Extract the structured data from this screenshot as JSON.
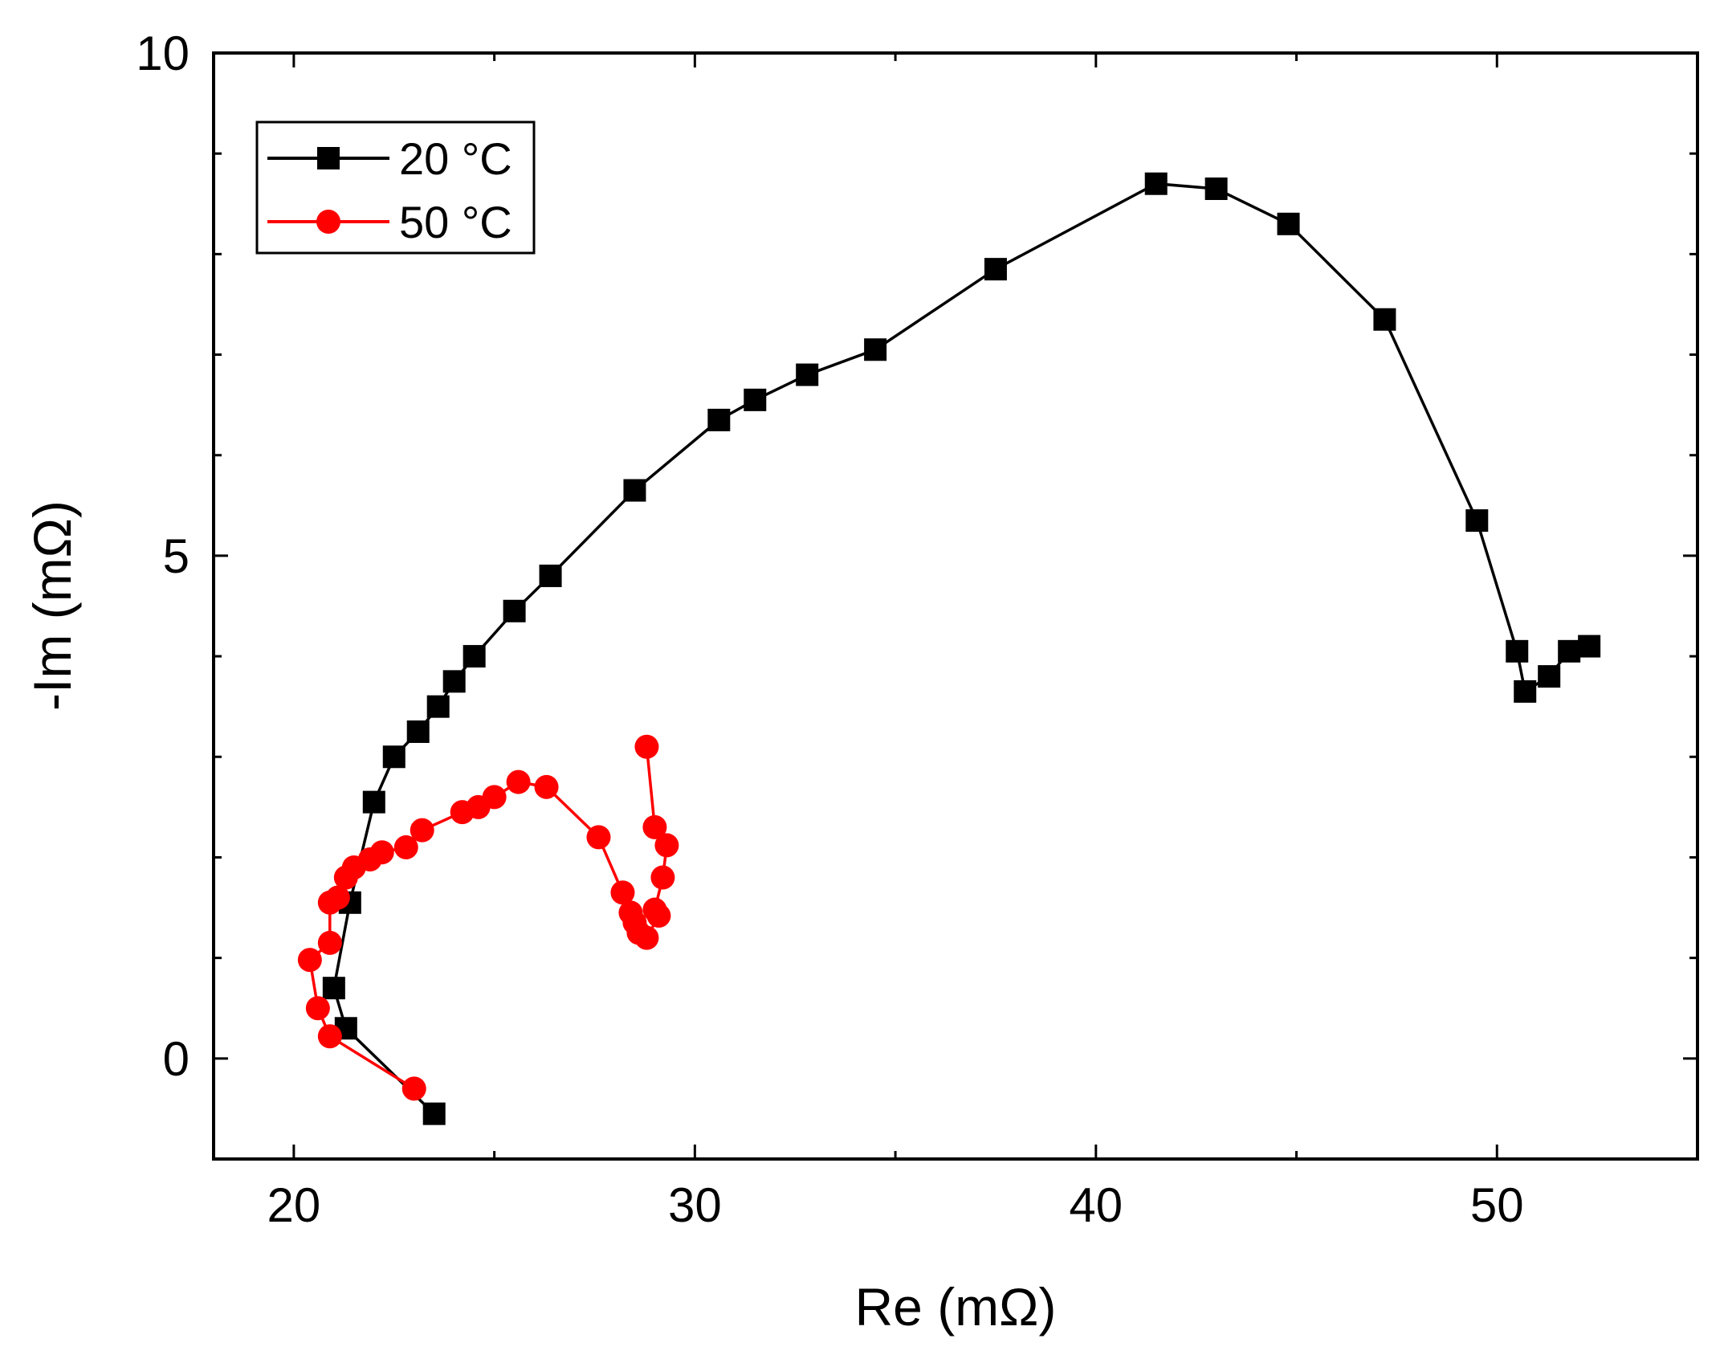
{
  "chart_data": {
    "type": "scatter",
    "xlabel": "Re (mΩ)",
    "ylabel": "-Im (mΩ)",
    "xlim": [
      18,
      55
    ],
    "ylim": [
      -1,
      10
    ],
    "x_ticks": [
      20,
      30,
      40,
      50
    ],
    "y_ticks": [
      0,
      5,
      10
    ],
    "x_minor_step": 5,
    "y_minor_step": 1,
    "grid": false,
    "legend_position": "top-left",
    "series": [
      {
        "name": "20 °C",
        "color": "#000000",
        "marker": "square",
        "x": [
          23.5,
          21.3,
          21.0,
          21.4,
          22.0,
          22.5,
          23.1,
          23.6,
          24.0,
          24.5,
          25.5,
          26.4,
          28.5,
          30.6,
          31.5,
          32.8,
          34.5,
          37.5,
          41.5,
          43.0,
          44.8,
          47.2,
          49.5,
          50.5,
          50.7,
          51.3,
          51.8,
          52.3
        ],
        "y": [
          -0.55,
          0.3,
          0.7,
          1.55,
          2.55,
          3.0,
          3.25,
          3.5,
          3.75,
          4.0,
          4.45,
          4.8,
          5.65,
          6.35,
          6.55,
          6.8,
          7.05,
          7.85,
          8.7,
          8.65,
          8.3,
          7.35,
          5.35,
          4.05,
          3.65,
          3.8,
          4.05,
          4.1
        ]
      },
      {
        "name": "50 °C",
        "color": "#ff0000",
        "marker": "circle",
        "x": [
          23.0,
          20.9,
          20.6,
          20.4,
          20.9,
          20.9,
          21.1,
          21.3,
          21.5,
          21.9,
          22.2,
          22.8,
          23.2,
          24.2,
          24.6,
          25.0,
          25.6,
          26.3,
          27.6,
          28.2,
          28.4,
          28.5,
          28.6,
          28.8,
          29.1,
          29.0,
          29.2,
          29.3,
          29.0,
          28.8
        ],
        "y": [
          -0.3,
          0.22,
          0.5,
          0.98,
          1.15,
          1.55,
          1.6,
          1.8,
          1.9,
          1.98,
          2.05,
          2.1,
          2.27,
          2.45,
          2.5,
          2.6,
          2.75,
          2.7,
          2.2,
          1.65,
          1.45,
          1.35,
          1.25,
          1.2,
          1.42,
          1.48,
          1.8,
          2.12,
          2.3,
          3.1
        ]
      }
    ]
  }
}
